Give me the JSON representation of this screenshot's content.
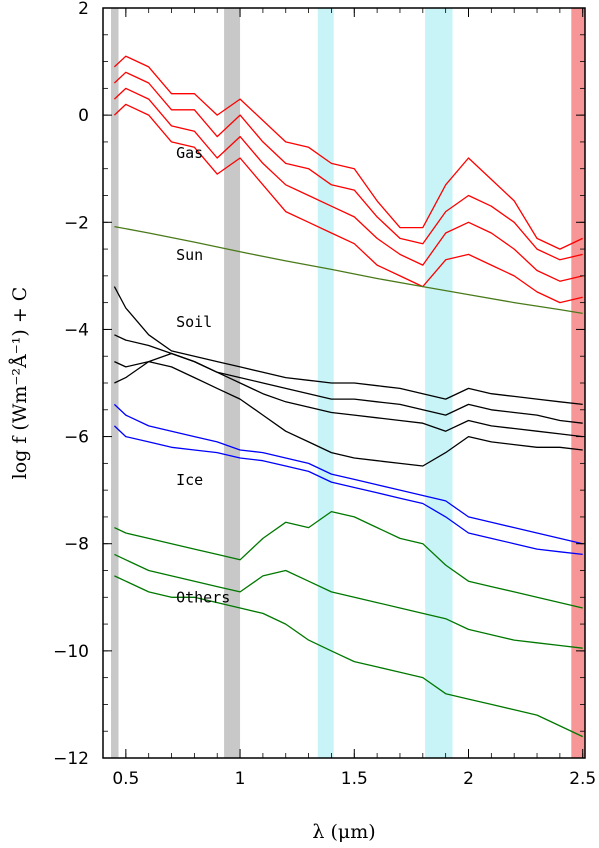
{
  "chart_data": {
    "type": "line",
    "xlabel": "λ (μm)",
    "ylabel": "log f (Wm⁻²Å⁻¹) + C",
    "xlim": [
      0.4,
      2.51
    ],
    "ylim": [
      -12,
      2
    ],
    "x_ticks": [
      0.5,
      1,
      1.5,
      2,
      2.5
    ],
    "x_tick_labels": [
      "0.5",
      "1",
      "1.5",
      "2",
      "2.5"
    ],
    "y_ticks": [
      2,
      0,
      -2,
      -4,
      -6,
      -8,
      -10,
      -12
    ],
    "y_tick_labels": [
      "2",
      "0",
      "−2",
      "−4",
      "−6",
      "−8",
      "−10",
      "−12"
    ],
    "grid": false,
    "bands": [
      {
        "x0": 0.435,
        "x1": 0.468,
        "color": "#c8c8c8"
      },
      {
        "x0": 0.93,
        "x1": 1.0,
        "color": "#c8c8c8"
      },
      {
        "x0": 1.34,
        "x1": 1.41,
        "color": "#c8f4f8"
      },
      {
        "x0": 1.81,
        "x1": 1.93,
        "color": "#c8f4f8"
      },
      {
        "x0": 2.45,
        "x1": 2.51,
        "color": "#f79696"
      }
    ],
    "groups": [
      {
        "name": "Gas",
        "color": "#ff0000",
        "label_pos": [
          0.72,
          -0.8
        ]
      },
      {
        "name": "Sun",
        "color": "#4a7a1a",
        "label_pos": [
          0.72,
          -2.7
        ]
      },
      {
        "name": "Soil",
        "color": "#000000",
        "label_pos": [
          0.72,
          -3.95
        ]
      },
      {
        "name": "Ice",
        "color": "#0000ff",
        "label_pos": [
          0.72,
          -6.9
        ]
      },
      {
        "name": "Others",
        "color": "#007800",
        "label_pos": [
          0.72,
          -9.1
        ]
      }
    ],
    "series": [
      {
        "group": "Gas",
        "x": [
          0.45,
          0.5,
          0.6,
          0.7,
          0.8,
          0.9,
          1.0,
          1.1,
          1.2,
          1.3,
          1.4,
          1.5,
          1.6,
          1.7,
          1.8,
          1.9,
          2.0,
          2.1,
          2.2,
          2.3,
          2.4,
          2.5
        ],
        "y": [
          0.9,
          1.1,
          0.9,
          0.4,
          0.4,
          0.0,
          0.3,
          -0.1,
          -0.5,
          -0.6,
          -0.9,
          -1.0,
          -1.6,
          -2.1,
          -2.1,
          -1.3,
          -0.8,
          -1.2,
          -1.6,
          -2.3,
          -2.5,
          -2.3
        ]
      },
      {
        "group": "Gas",
        "x": [
          0.45,
          0.5,
          0.6,
          0.7,
          0.8,
          0.9,
          1.0,
          1.1,
          1.2,
          1.3,
          1.4,
          1.5,
          1.6,
          1.7,
          1.8,
          1.9,
          2.0,
          2.1,
          2.2,
          2.3,
          2.4,
          2.5
        ],
        "y": [
          0.6,
          0.8,
          0.6,
          0.1,
          0.1,
          -0.4,
          0.0,
          -0.5,
          -0.9,
          -1.0,
          -1.3,
          -1.4,
          -1.9,
          -2.3,
          -2.4,
          -1.8,
          -1.5,
          -1.7,
          -2.0,
          -2.5,
          -2.7,
          -2.6
        ]
      },
      {
        "group": "Gas",
        "x": [
          0.45,
          0.5,
          0.6,
          0.7,
          0.8,
          0.9,
          1.0,
          1.1,
          1.2,
          1.3,
          1.4,
          1.5,
          1.6,
          1.7,
          1.8,
          1.9,
          2.0,
          2.1,
          2.2,
          2.3,
          2.4,
          2.5
        ],
        "y": [
          0.3,
          0.5,
          0.3,
          -0.2,
          -0.3,
          -0.8,
          -0.4,
          -0.9,
          -1.3,
          -1.5,
          -1.7,
          -1.9,
          -2.3,
          -2.6,
          -2.8,
          -2.2,
          -2.0,
          -2.2,
          -2.5,
          -2.9,
          -3.1,
          -3.0
        ]
      },
      {
        "group": "Gas",
        "x": [
          0.45,
          0.5,
          0.6,
          0.7,
          0.8,
          0.9,
          1.0,
          1.1,
          1.2,
          1.3,
          1.4,
          1.5,
          1.6,
          1.7,
          1.8,
          1.9,
          2.0,
          2.1,
          2.2,
          2.3,
          2.4,
          2.5
        ],
        "y": [
          0.0,
          0.2,
          0.0,
          -0.5,
          -0.6,
          -1.1,
          -0.8,
          -1.3,
          -1.8,
          -2.0,
          -2.2,
          -2.4,
          -2.8,
          -3.0,
          -3.2,
          -2.7,
          -2.6,
          -2.8,
          -3.0,
          -3.3,
          -3.5,
          -3.4
        ]
      },
      {
        "group": "Sun",
        "x": [
          0.45,
          0.6,
          0.8,
          1.0,
          1.2,
          1.4,
          1.6,
          1.8,
          2.0,
          2.2,
          2.4,
          2.5
        ],
        "y": [
          -2.08,
          -2.2,
          -2.37,
          -2.55,
          -2.72,
          -2.88,
          -3.05,
          -3.2,
          -3.35,
          -3.5,
          -3.63,
          -3.7
        ]
      },
      {
        "group": "Soil",
        "x": [
          0.45,
          0.5,
          0.6,
          0.7,
          0.8,
          0.9,
          1.0,
          1.1,
          1.2,
          1.3,
          1.4,
          1.5,
          1.6,
          1.7,
          1.8,
          1.9,
          2.0,
          2.1,
          2.2,
          2.3,
          2.4,
          2.5
        ],
        "y": [
          -3.2,
          -3.6,
          -4.1,
          -4.4,
          -4.5,
          -4.6,
          -4.7,
          -4.8,
          -4.9,
          -4.95,
          -5.0,
          -5.0,
          -5.05,
          -5.1,
          -5.2,
          -5.3,
          -5.1,
          -5.2,
          -5.25,
          -5.3,
          -5.35,
          -5.4
        ]
      },
      {
        "group": "Soil",
        "x": [
          0.45,
          0.5,
          0.6,
          0.7,
          0.8,
          0.9,
          1.0,
          1.1,
          1.2,
          1.3,
          1.4,
          1.5,
          1.6,
          1.7,
          1.8,
          1.9,
          2.0,
          2.1,
          2.2,
          2.3,
          2.4,
          2.5
        ],
        "y": [
          -4.1,
          -4.2,
          -4.3,
          -4.45,
          -4.6,
          -4.8,
          -4.9,
          -5.0,
          -5.1,
          -5.2,
          -5.3,
          -5.3,
          -5.35,
          -5.4,
          -5.5,
          -5.6,
          -5.4,
          -5.5,
          -5.55,
          -5.6,
          -5.7,
          -5.75
        ]
      },
      {
        "group": "Soil",
        "x": [
          0.45,
          0.5,
          0.6,
          0.7,
          0.8,
          0.9,
          1.0,
          1.1,
          1.2,
          1.3,
          1.4,
          1.5,
          1.6,
          1.7,
          1.8,
          1.9,
          2.0,
          2.1,
          2.2,
          2.3,
          2.4,
          2.5
        ],
        "y": [
          -5.0,
          -4.9,
          -4.6,
          -4.45,
          -4.6,
          -4.8,
          -5.0,
          -5.2,
          -5.35,
          -5.45,
          -5.55,
          -5.6,
          -5.65,
          -5.7,
          -5.75,
          -5.9,
          -5.7,
          -5.8,
          -5.85,
          -5.9,
          -5.95,
          -6.0
        ]
      },
      {
        "group": "Soil",
        "x": [
          0.45,
          0.5,
          0.6,
          0.7,
          0.8,
          0.9,
          1.0,
          1.1,
          1.2,
          1.3,
          1.4,
          1.5,
          1.6,
          1.7,
          1.8,
          1.9,
          2.0,
          2.1,
          2.2,
          2.3,
          2.4,
          2.5
        ],
        "y": [
          -4.6,
          -4.7,
          -4.6,
          -4.7,
          -4.9,
          -5.1,
          -5.3,
          -5.6,
          -5.9,
          -6.1,
          -6.3,
          -6.4,
          -6.45,
          -6.5,
          -6.55,
          -6.3,
          -6.0,
          -6.1,
          -6.15,
          -6.2,
          -6.2,
          -6.25
        ]
      },
      {
        "group": "Ice",
        "x": [
          0.45,
          0.5,
          0.6,
          0.7,
          0.8,
          0.9,
          1.0,
          1.1,
          1.2,
          1.3,
          1.4,
          1.5,
          1.6,
          1.7,
          1.8,
          1.9,
          2.0,
          2.1,
          2.2,
          2.3,
          2.4,
          2.5
        ],
        "y": [
          -5.4,
          -5.6,
          -5.8,
          -5.9,
          -6.0,
          -6.1,
          -6.25,
          -6.3,
          -6.4,
          -6.5,
          -6.7,
          -6.8,
          -6.9,
          -7.0,
          -7.1,
          -7.2,
          -7.5,
          -7.6,
          -7.7,
          -7.8,
          -7.9,
          -8.0
        ]
      },
      {
        "group": "Ice",
        "x": [
          0.45,
          0.5,
          0.6,
          0.7,
          0.8,
          0.9,
          1.0,
          1.1,
          1.2,
          1.3,
          1.4,
          1.5,
          1.6,
          1.7,
          1.8,
          1.9,
          2.0,
          2.1,
          2.2,
          2.3,
          2.4,
          2.5
        ],
        "y": [
          -5.8,
          -6.0,
          -6.1,
          -6.2,
          -6.25,
          -6.3,
          -6.4,
          -6.45,
          -6.55,
          -6.65,
          -6.85,
          -6.95,
          -7.05,
          -7.15,
          -7.25,
          -7.5,
          -7.8,
          -7.9,
          -8.0,
          -8.1,
          -8.15,
          -8.2
        ]
      },
      {
        "group": "Others",
        "x": [
          0.45,
          0.5,
          0.6,
          0.7,
          0.8,
          0.9,
          1.0,
          1.1,
          1.2,
          1.3,
          1.4,
          1.5,
          1.6,
          1.7,
          1.8,
          1.9,
          2.0,
          2.1,
          2.2,
          2.3,
          2.4,
          2.5
        ],
        "y": [
          -7.7,
          -7.8,
          -7.9,
          -8.0,
          -8.1,
          -8.2,
          -8.3,
          -7.9,
          -7.6,
          -7.7,
          -7.4,
          -7.5,
          -7.7,
          -7.9,
          -8.0,
          -8.4,
          -8.7,
          -8.8,
          -8.9,
          -9.0,
          -9.1,
          -9.2
        ]
      },
      {
        "group": "Others",
        "x": [
          0.45,
          0.5,
          0.6,
          0.7,
          0.8,
          0.9,
          1.0,
          1.1,
          1.2,
          1.3,
          1.4,
          1.5,
          1.6,
          1.7,
          1.8,
          1.9,
          2.0,
          2.1,
          2.2,
          2.3,
          2.4,
          2.5
        ],
        "y": [
          -8.2,
          -8.3,
          -8.5,
          -8.6,
          -8.7,
          -8.8,
          -8.9,
          -8.6,
          -8.5,
          -8.7,
          -8.9,
          -9.0,
          -9.1,
          -9.2,
          -9.3,
          -9.4,
          -9.6,
          -9.7,
          -9.8,
          -9.85,
          -9.9,
          -9.95
        ]
      },
      {
        "group": "Others",
        "x": [
          0.45,
          0.5,
          0.6,
          0.7,
          0.8,
          0.9,
          1.0,
          1.1,
          1.2,
          1.3,
          1.4,
          1.5,
          1.6,
          1.7,
          1.8,
          1.9,
          2.0,
          2.1,
          2.2,
          2.3,
          2.4,
          2.5
        ],
        "y": [
          -8.6,
          -8.7,
          -8.9,
          -9.0,
          -9.0,
          -9.1,
          -9.2,
          -9.3,
          -9.5,
          -9.8,
          -10.0,
          -10.2,
          -10.3,
          -10.4,
          -10.5,
          -10.8,
          -10.9,
          -11.0,
          -11.1,
          -11.2,
          -11.4,
          -11.6
        ]
      }
    ]
  }
}
